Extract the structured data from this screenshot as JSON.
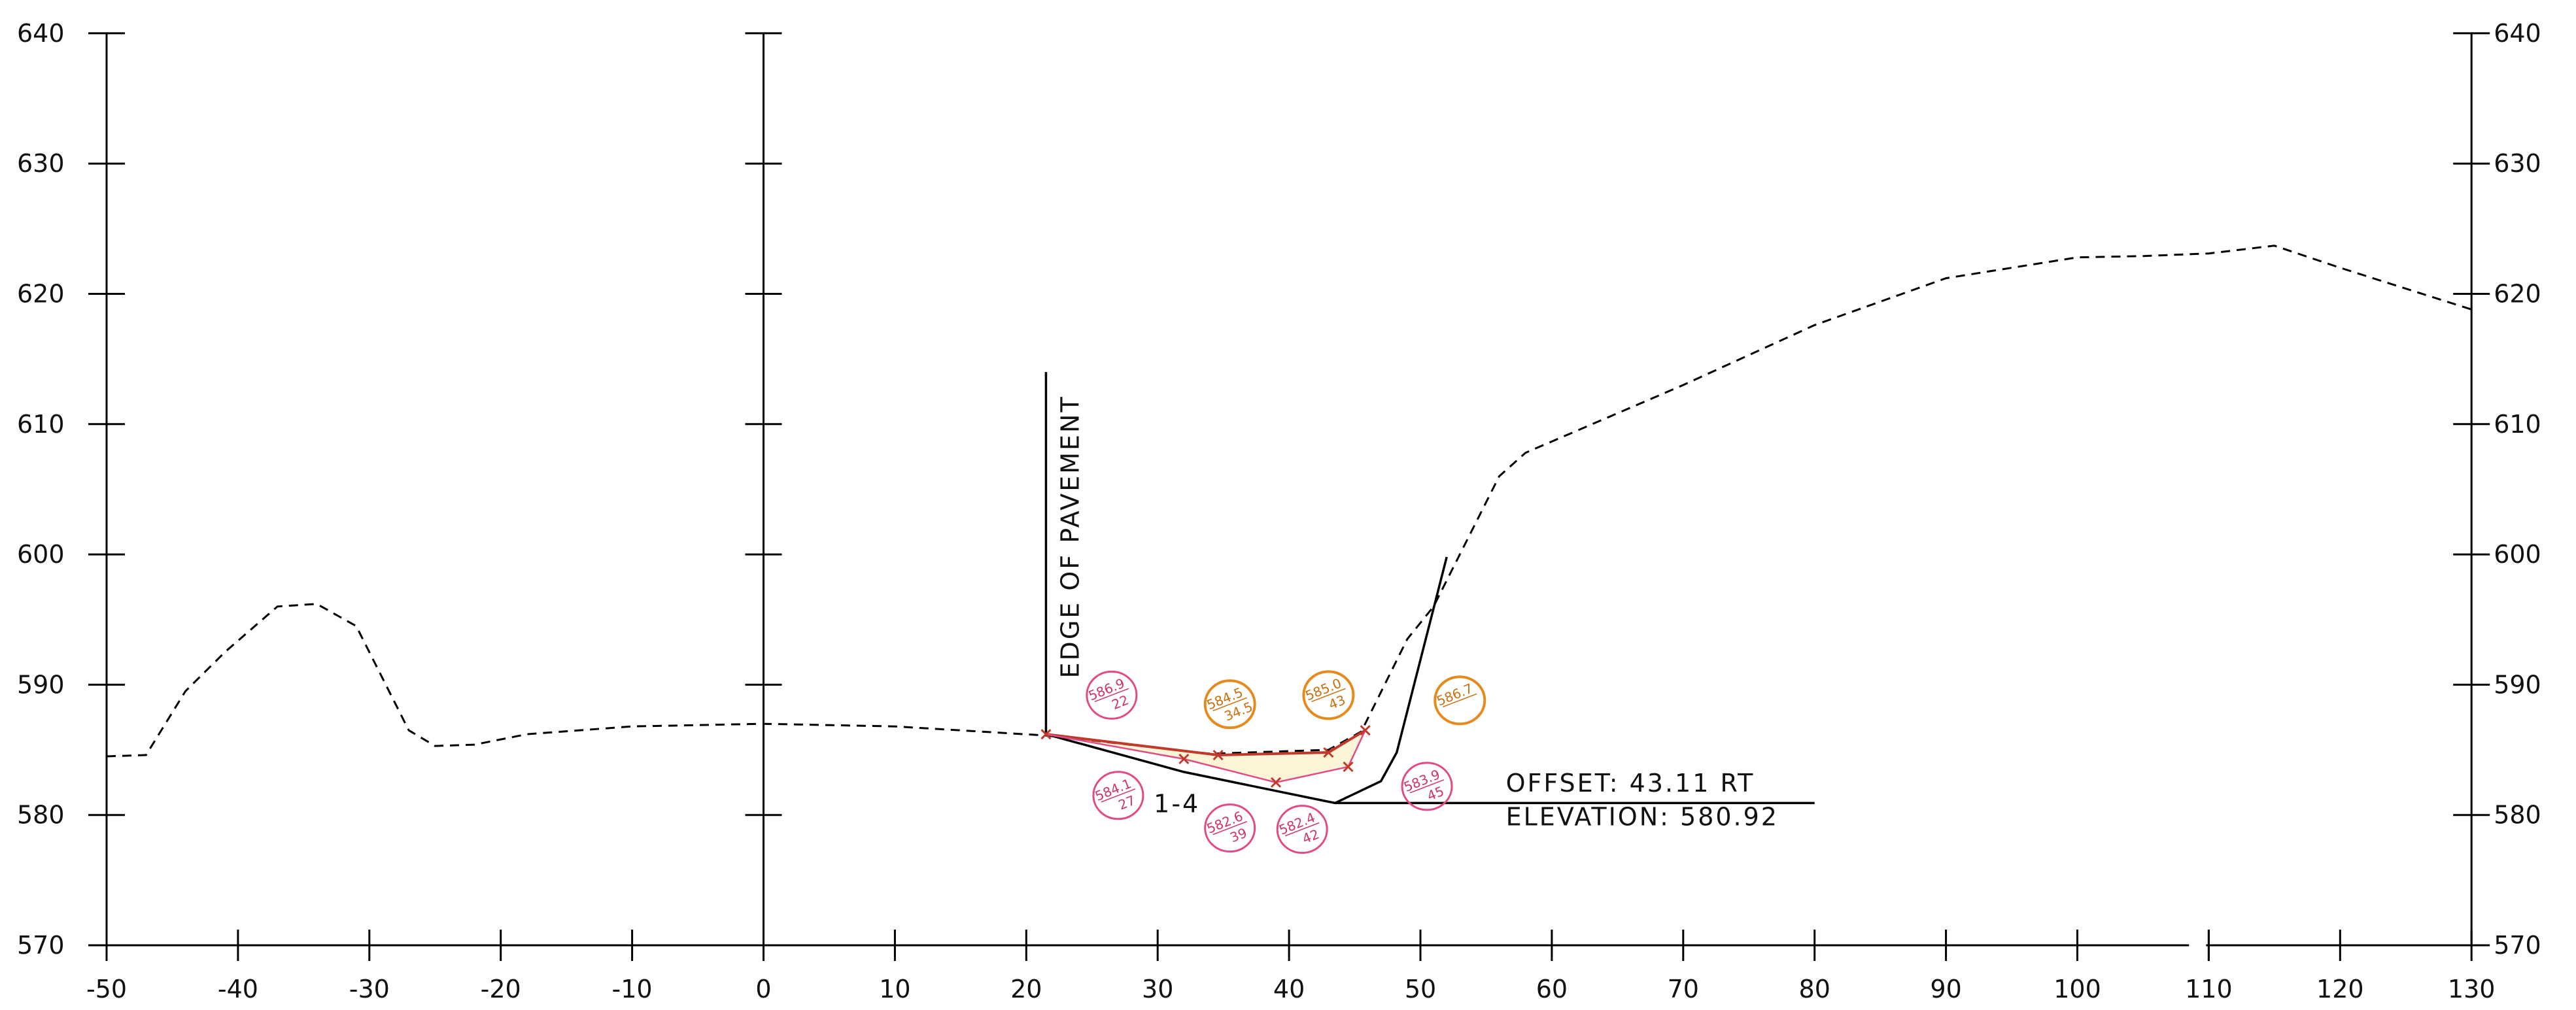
{
  "chart_data": {
    "type": "line",
    "x_ticks": [
      "-50",
      "-40",
      "-30",
      "-20",
      "-10",
      "0",
      "10",
      "20",
      "30",
      "40",
      "50",
      "60",
      "70",
      "80",
      "90",
      "100",
      "110",
      "120",
      "130"
    ],
    "y_ticks": [
      "640",
      "630",
      "620",
      "610",
      "600",
      "590",
      "580",
      "570"
    ],
    "xlim": [
      -50,
      130
    ],
    "ylim": [
      570,
      640
    ],
    "grid": false,
    "series": [
      {
        "style": "dashed",
        "role": "existing-ground",
        "points": [
          [
            -50,
            584.5
          ],
          [
            -47,
            584.6
          ],
          [
            -44,
            589.5
          ],
          [
            -41,
            592.5
          ],
          [
            -37,
            596
          ],
          [
            -34,
            596.2
          ],
          [
            -31,
            594.5
          ],
          [
            -27,
            586.5
          ],
          [
            -25,
            585.3
          ],
          [
            -22,
            585.4
          ],
          [
            -18,
            586.2
          ],
          [
            -10,
            586.8
          ],
          [
            0,
            587.0
          ],
          [
            10,
            586.8
          ],
          [
            21.5,
            586.1
          ],
          [
            34,
            584.7
          ],
          [
            43,
            585.0
          ],
          [
            45.5,
            586.4
          ],
          [
            49,
            593.5
          ],
          [
            51,
            596
          ],
          [
            56,
            606
          ],
          [
            58,
            607.8
          ],
          [
            70,
            613
          ],
          [
            80,
            617.6
          ],
          [
            90,
            621.2
          ],
          [
            100,
            622.8
          ],
          [
            105,
            622.9
          ],
          [
            110,
            623.1
          ],
          [
            115,
            623.7
          ],
          [
            120,
            622
          ],
          [
            130,
            618.8
          ]
        ]
      },
      {
        "style": "solid",
        "role": "proposed-section",
        "points": [
          [
            21.5,
            586.2
          ],
          [
            32,
            583.3
          ],
          [
            43.5,
            580.92
          ],
          [
            80,
            580.92
          ]
        ]
      },
      {
        "style": "solid",
        "role": "back-slope",
        "points": [
          [
            43.5,
            580.92
          ],
          [
            47,
            582.6
          ],
          [
            48.2,
            584.8
          ],
          [
            52,
            599.8
          ]
        ]
      }
    ],
    "annotations": {
      "edge_of_pavement": "EDGE OF PAVEMENT",
      "offset": "OFFSET: 43.11 RT",
      "elevation": "ELEVATION: 580.92",
      "section_label": "1-4"
    },
    "sample_points": [
      {
        "x": 21.5,
        "y": 586.2
      },
      {
        "x": 32,
        "y": 584.3
      },
      {
        "x": 34.6,
        "y": 584.6
      },
      {
        "x": 39,
        "y": 582.5
      },
      {
        "x": 43,
        "y": 584.8
      },
      {
        "x": 44.5,
        "y": 583.7
      },
      {
        "x": 45.8,
        "y": 586.5
      }
    ],
    "bubbles": [
      {
        "color": "pink",
        "x": 26.5,
        "y": 589.2,
        "top": "586.9",
        "bottom": "22"
      },
      {
        "color": "pink",
        "x": 27,
        "y": 581.5,
        "top": "584.1",
        "bottom": "27"
      },
      {
        "color": "orange",
        "x": 35.5,
        "y": 588.5,
        "top": "584.5",
        "bottom": "34.5"
      },
      {
        "color": "pink",
        "x": 35.5,
        "y": 579,
        "top": "582.6",
        "bottom": "39"
      },
      {
        "color": "orange",
        "x": 43,
        "y": 589.2,
        "top": "585.0",
        "bottom": "43"
      },
      {
        "color": "pink",
        "x": 41,
        "y": 578.9,
        "top": "582.4",
        "bottom": "42"
      },
      {
        "color": "orange",
        "x": 53,
        "y": 588.8,
        "top": "586.7",
        "bottom": ""
      },
      {
        "color": "pink",
        "x": 50.5,
        "y": 582.2,
        "top": "583.9",
        "bottom": "45"
      }
    ],
    "colors": {
      "lines": "#000000",
      "pink_markup": "#e24a86",
      "orange_markup": "#e68a1e",
      "sample_line": "#c0392b"
    }
  }
}
